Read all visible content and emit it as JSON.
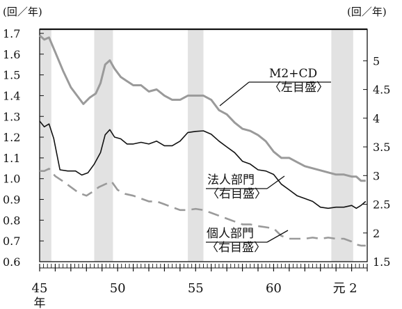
{
  "chart_data": {
    "type": "line",
    "left_axis_unit": "(回／年)",
    "right_axis_unit": "(回／年)",
    "left_ylim": [
      0.6,
      1.72
    ],
    "right_ylim": [
      1.5,
      5.55
    ],
    "left_ticks": [
      "1.7",
      "1.6",
      "1.5",
      "1.4",
      "1.3",
      "1.2",
      "1.1",
      "1.0",
      "0.9",
      "0.8",
      "0.7",
      "0.6"
    ],
    "right_ticks": [
      "5",
      "4.5",
      "4",
      "3.5",
      "3",
      "2.5",
      "2",
      "1.5"
    ],
    "x_tick_labels": [
      "45",
      "50",
      "55",
      "60",
      "元",
      "2"
    ],
    "x_axis_suffix": "年",
    "shaded_periods": [
      [
        45.0,
        45.75
      ],
      [
        48.5,
        49.7
      ],
      [
        54.5,
        55.5
      ],
      [
        63.7,
        65.1
      ]
    ],
    "annotations": {
      "m2": [
        "M2+CD",
        "〈左目盛〉"
      ],
      "corp": [
        "法人部門",
        "〈右目盛〉"
      ],
      "indiv": [
        "個人部門",
        "〈右目盛〉"
      ]
    },
    "series": [
      {
        "name": "M2+CD",
        "axis": "left",
        "color": "#9a9a9a",
        "style": "solid",
        "x": [
          45.0,
          45.3,
          45.6,
          46.0,
          46.5,
          47.0,
          47.4,
          47.8,
          48.2,
          48.6,
          48.9,
          49.2,
          49.5,
          49.8,
          50.2,
          50.6,
          51.0,
          51.5,
          52.0,
          52.5,
          53.0,
          53.5,
          54.0,
          54.5,
          55.0,
          55.5,
          56.0,
          56.5,
          57.0,
          57.5,
          58.0,
          58.5,
          59.0,
          59.5,
          60.0,
          60.5,
          61.0,
          61.5,
          62.0,
          62.5,
          63.0,
          63.5,
          64.0,
          64.5,
          65.0,
          65.3,
          65.6,
          65.9
        ],
        "values": [
          1.69,
          1.67,
          1.68,
          1.61,
          1.52,
          1.44,
          1.4,
          1.36,
          1.39,
          1.41,
          1.46,
          1.55,
          1.57,
          1.53,
          1.49,
          1.47,
          1.45,
          1.45,
          1.42,
          1.43,
          1.4,
          1.38,
          1.38,
          1.4,
          1.4,
          1.4,
          1.38,
          1.33,
          1.31,
          1.27,
          1.24,
          1.23,
          1.21,
          1.18,
          1.13,
          1.1,
          1.1,
          1.08,
          1.06,
          1.05,
          1.04,
          1.03,
          1.02,
          1.02,
          1.01,
          1.01,
          0.99,
          0.99
        ]
      },
      {
        "name": "法人部門",
        "axis": "right",
        "color": "#111111",
        "style": "solid",
        "x": [
          45.0,
          45.3,
          45.6,
          45.9,
          46.3,
          46.8,
          47.3,
          47.7,
          48.1,
          48.5,
          48.9,
          49.2,
          49.5,
          49.8,
          50.2,
          50.6,
          51.0,
          51.5,
          52.0,
          52.5,
          53.0,
          53.5,
          54.0,
          54.5,
          55.0,
          55.5,
          56.0,
          56.5,
          57.0,
          57.5,
          58.0,
          58.5,
          59.0,
          59.5,
          60.0,
          60.5,
          61.0,
          61.5,
          62.0,
          62.5,
          63.0,
          63.5,
          64.0,
          64.5,
          65.0,
          65.3,
          65.6,
          65.9
        ],
        "values": [
          3.95,
          3.85,
          3.9,
          3.65,
          3.1,
          3.08,
          3.08,
          3.01,
          3.05,
          3.2,
          3.4,
          3.71,
          3.8,
          3.67,
          3.64,
          3.55,
          3.55,
          3.58,
          3.55,
          3.6,
          3.52,
          3.52,
          3.6,
          3.75,
          3.77,
          3.78,
          3.72,
          3.6,
          3.5,
          3.4,
          3.25,
          3.2,
          3.1,
          3.08,
          3.02,
          2.85,
          2.75,
          2.65,
          2.6,
          2.55,
          2.45,
          2.43,
          2.45,
          2.45,
          2.48,
          2.43,
          2.48,
          2.55
        ]
      },
      {
        "name": "個人部門",
        "axis": "right",
        "color": "#9a9a9a",
        "style": "dashed",
        "x": [
          45.0,
          45.3,
          45.6,
          46.0,
          46.5,
          47.0,
          47.5,
          48.0,
          48.4,
          48.8,
          49.2,
          49.6,
          50.0,
          50.5,
          51.0,
          51.5,
          52.0,
          52.5,
          53.0,
          53.5,
          54.0,
          54.5,
          55.0,
          55.5,
          56.0,
          56.5,
          57.0,
          57.5,
          58.0,
          58.5,
          59.0,
          59.5,
          60.0,
          60.5,
          61.0,
          61.5,
          62.0,
          62.5,
          63.0,
          63.5,
          64.0,
          64.5,
          65.0,
          65.3,
          65.6,
          65.9
        ],
        "values": [
          3.08,
          3.08,
          3.12,
          2.99,
          2.9,
          2.8,
          2.7,
          2.65,
          2.72,
          2.8,
          2.85,
          2.9,
          2.75,
          2.68,
          2.65,
          2.6,
          2.55,
          2.55,
          2.5,
          2.45,
          2.4,
          2.4,
          2.42,
          2.4,
          2.35,
          2.3,
          2.25,
          2.2,
          2.15,
          2.15,
          2.12,
          2.1,
          2.08,
          1.95,
          1.9,
          1.9,
          1.9,
          1.92,
          1.9,
          1.92,
          1.9,
          1.9,
          1.85,
          1.8,
          1.78,
          1.78
        ]
      }
    ]
  }
}
